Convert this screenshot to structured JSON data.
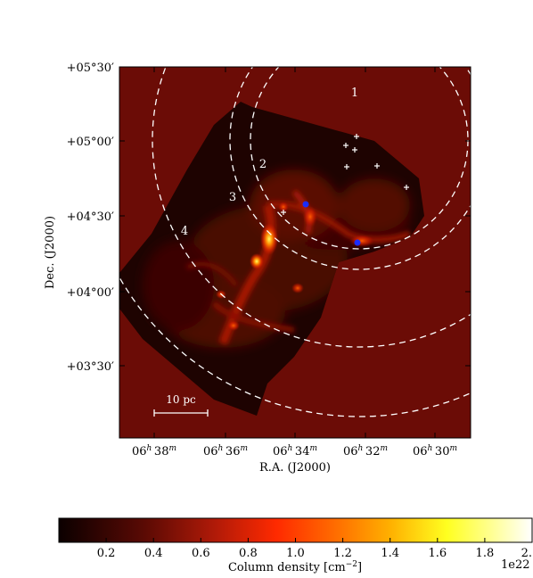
{
  "chart_data": {
    "type": "heatmap",
    "xlabel": "R.A. (J2000)",
    "ylabel": "Dec. (J2000)",
    "x_ticks": [
      {
        "h": "06",
        "m": "38"
      },
      {
        "h": "06",
        "m": "36"
      },
      {
        "h": "06",
        "m": "34"
      },
      {
        "h": "06",
        "m": "32"
      },
      {
        "h": "06",
        "m": "30"
      }
    ],
    "y_ticks": [
      "+05°30′",
      "+05°00′",
      "+04°30′",
      "+04°00′",
      "+03°30′"
    ],
    "colorbar": {
      "label": "Column density [cm",
      "label_exp": "−2",
      "label_close": "]",
      "ticks": [
        "0.2",
        "0.4",
        "0.6",
        "0.8",
        "1.0",
        "1.2",
        "1.4",
        "1.6",
        "1.8",
        "2."
      ],
      "tick_values": [
        0.2,
        0.4,
        0.6,
        0.8,
        1.0,
        1.2,
        1.4,
        1.6,
        1.8,
        2.0
      ],
      "range": [
        0.0,
        2.0
      ],
      "offset_text": "1e22",
      "colormap": "hot"
    },
    "region_labels": [
      "1",
      "2",
      "3",
      "4"
    ],
    "scalebar_label": "10 pc",
    "colors": {
      "background": "#6b0c06",
      "contours": "#ffffff",
      "markers_blue": "#1a2cff",
      "markers_white": "#ffffff"
    }
  }
}
